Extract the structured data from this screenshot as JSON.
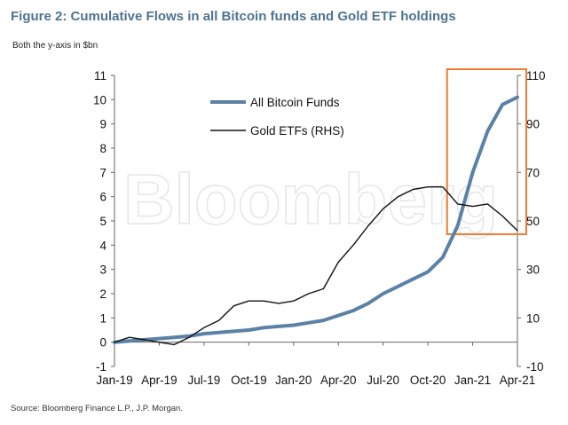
{
  "header": {
    "title": "Figure 2: Cumulative Flows in all Bitcoin funds and Gold ETF holdings",
    "subtitle": "Both the y-axis in $bn"
  },
  "footer": {
    "source": "Source: Bloomberg Finance L.P., J.P. Morgan."
  },
  "watermark": {
    "text": "Bloomberg"
  },
  "chart_data": {
    "type": "line",
    "title": "Figure 2: Cumulative Flows in all Bitcoin funds and Gold ETF holdings",
    "x_tick_labels": [
      "Jan-19",
      "Apr-19",
      "Jul-19",
      "Oct-19",
      "Jan-20",
      "Apr-20",
      "Jul-20",
      "Oct-20",
      "Jan-21",
      "Apr-21"
    ],
    "x_range": [
      "Jan-19",
      "Apr-21"
    ],
    "y_left": {
      "ticks": [
        -1,
        0,
        1,
        2,
        3,
        4,
        5,
        6,
        7,
        8,
        9,
        10,
        11
      ],
      "ylim": [
        -1,
        11
      ]
    },
    "y_right": {
      "ticks": [
        -10,
        10,
        30,
        50,
        70,
        90,
        110
      ],
      "ylim": [
        -10,
        110
      ]
    },
    "grid": false,
    "legend_position": "top-center",
    "highlight_box": {
      "from": "Dec-20",
      "to": "Apr-21",
      "color": "#ee7d31"
    },
    "series": [
      {
        "name": "All Bitcoin Funds",
        "axis": "left",
        "color": "#5b82a6",
        "x": [
          "Jan-19",
          "Feb-19",
          "Mar-19",
          "Apr-19",
          "May-19",
          "Jun-19",
          "Jul-19",
          "Aug-19",
          "Sep-19",
          "Oct-19",
          "Nov-19",
          "Dec-19",
          "Jan-20",
          "Feb-20",
          "Mar-20",
          "Apr-20",
          "May-20",
          "Jun-20",
          "Jul-20",
          "Aug-20",
          "Sep-20",
          "Oct-20",
          "Nov-20",
          "Dec-20",
          "Jan-21",
          "Feb-21",
          "Mar-21",
          "Apr-21"
        ],
        "values": [
          0.0,
          0.05,
          0.1,
          0.15,
          0.2,
          0.25,
          0.35,
          0.4,
          0.45,
          0.5,
          0.6,
          0.65,
          0.7,
          0.8,
          0.9,
          1.1,
          1.3,
          1.6,
          2.0,
          2.3,
          2.6,
          2.9,
          3.5,
          4.8,
          7.0,
          8.7,
          9.8,
          10.1
        ]
      },
      {
        "name": "Gold ETFs (RHS)",
        "axis": "right",
        "color": "#111111",
        "x": [
          "Jan-19",
          "Feb-19",
          "Mar-19",
          "Apr-19",
          "May-19",
          "Jun-19",
          "Jul-19",
          "Aug-19",
          "Sep-19",
          "Oct-19",
          "Nov-19",
          "Dec-19",
          "Jan-20",
          "Feb-20",
          "Mar-20",
          "Apr-20",
          "May-20",
          "Jun-20",
          "Jul-20",
          "Aug-20",
          "Sep-20",
          "Oct-20",
          "Nov-20",
          "Dec-20",
          "Jan-21",
          "Feb-21",
          "Mar-21",
          "Apr-21"
        ],
        "values": [
          0,
          2,
          1,
          0,
          -1,
          2,
          6,
          9,
          15,
          17,
          17,
          16,
          17,
          20,
          22,
          33,
          40,
          48,
          55,
          60,
          63,
          64,
          64,
          57,
          56,
          57,
          52,
          46
        ]
      }
    ]
  }
}
